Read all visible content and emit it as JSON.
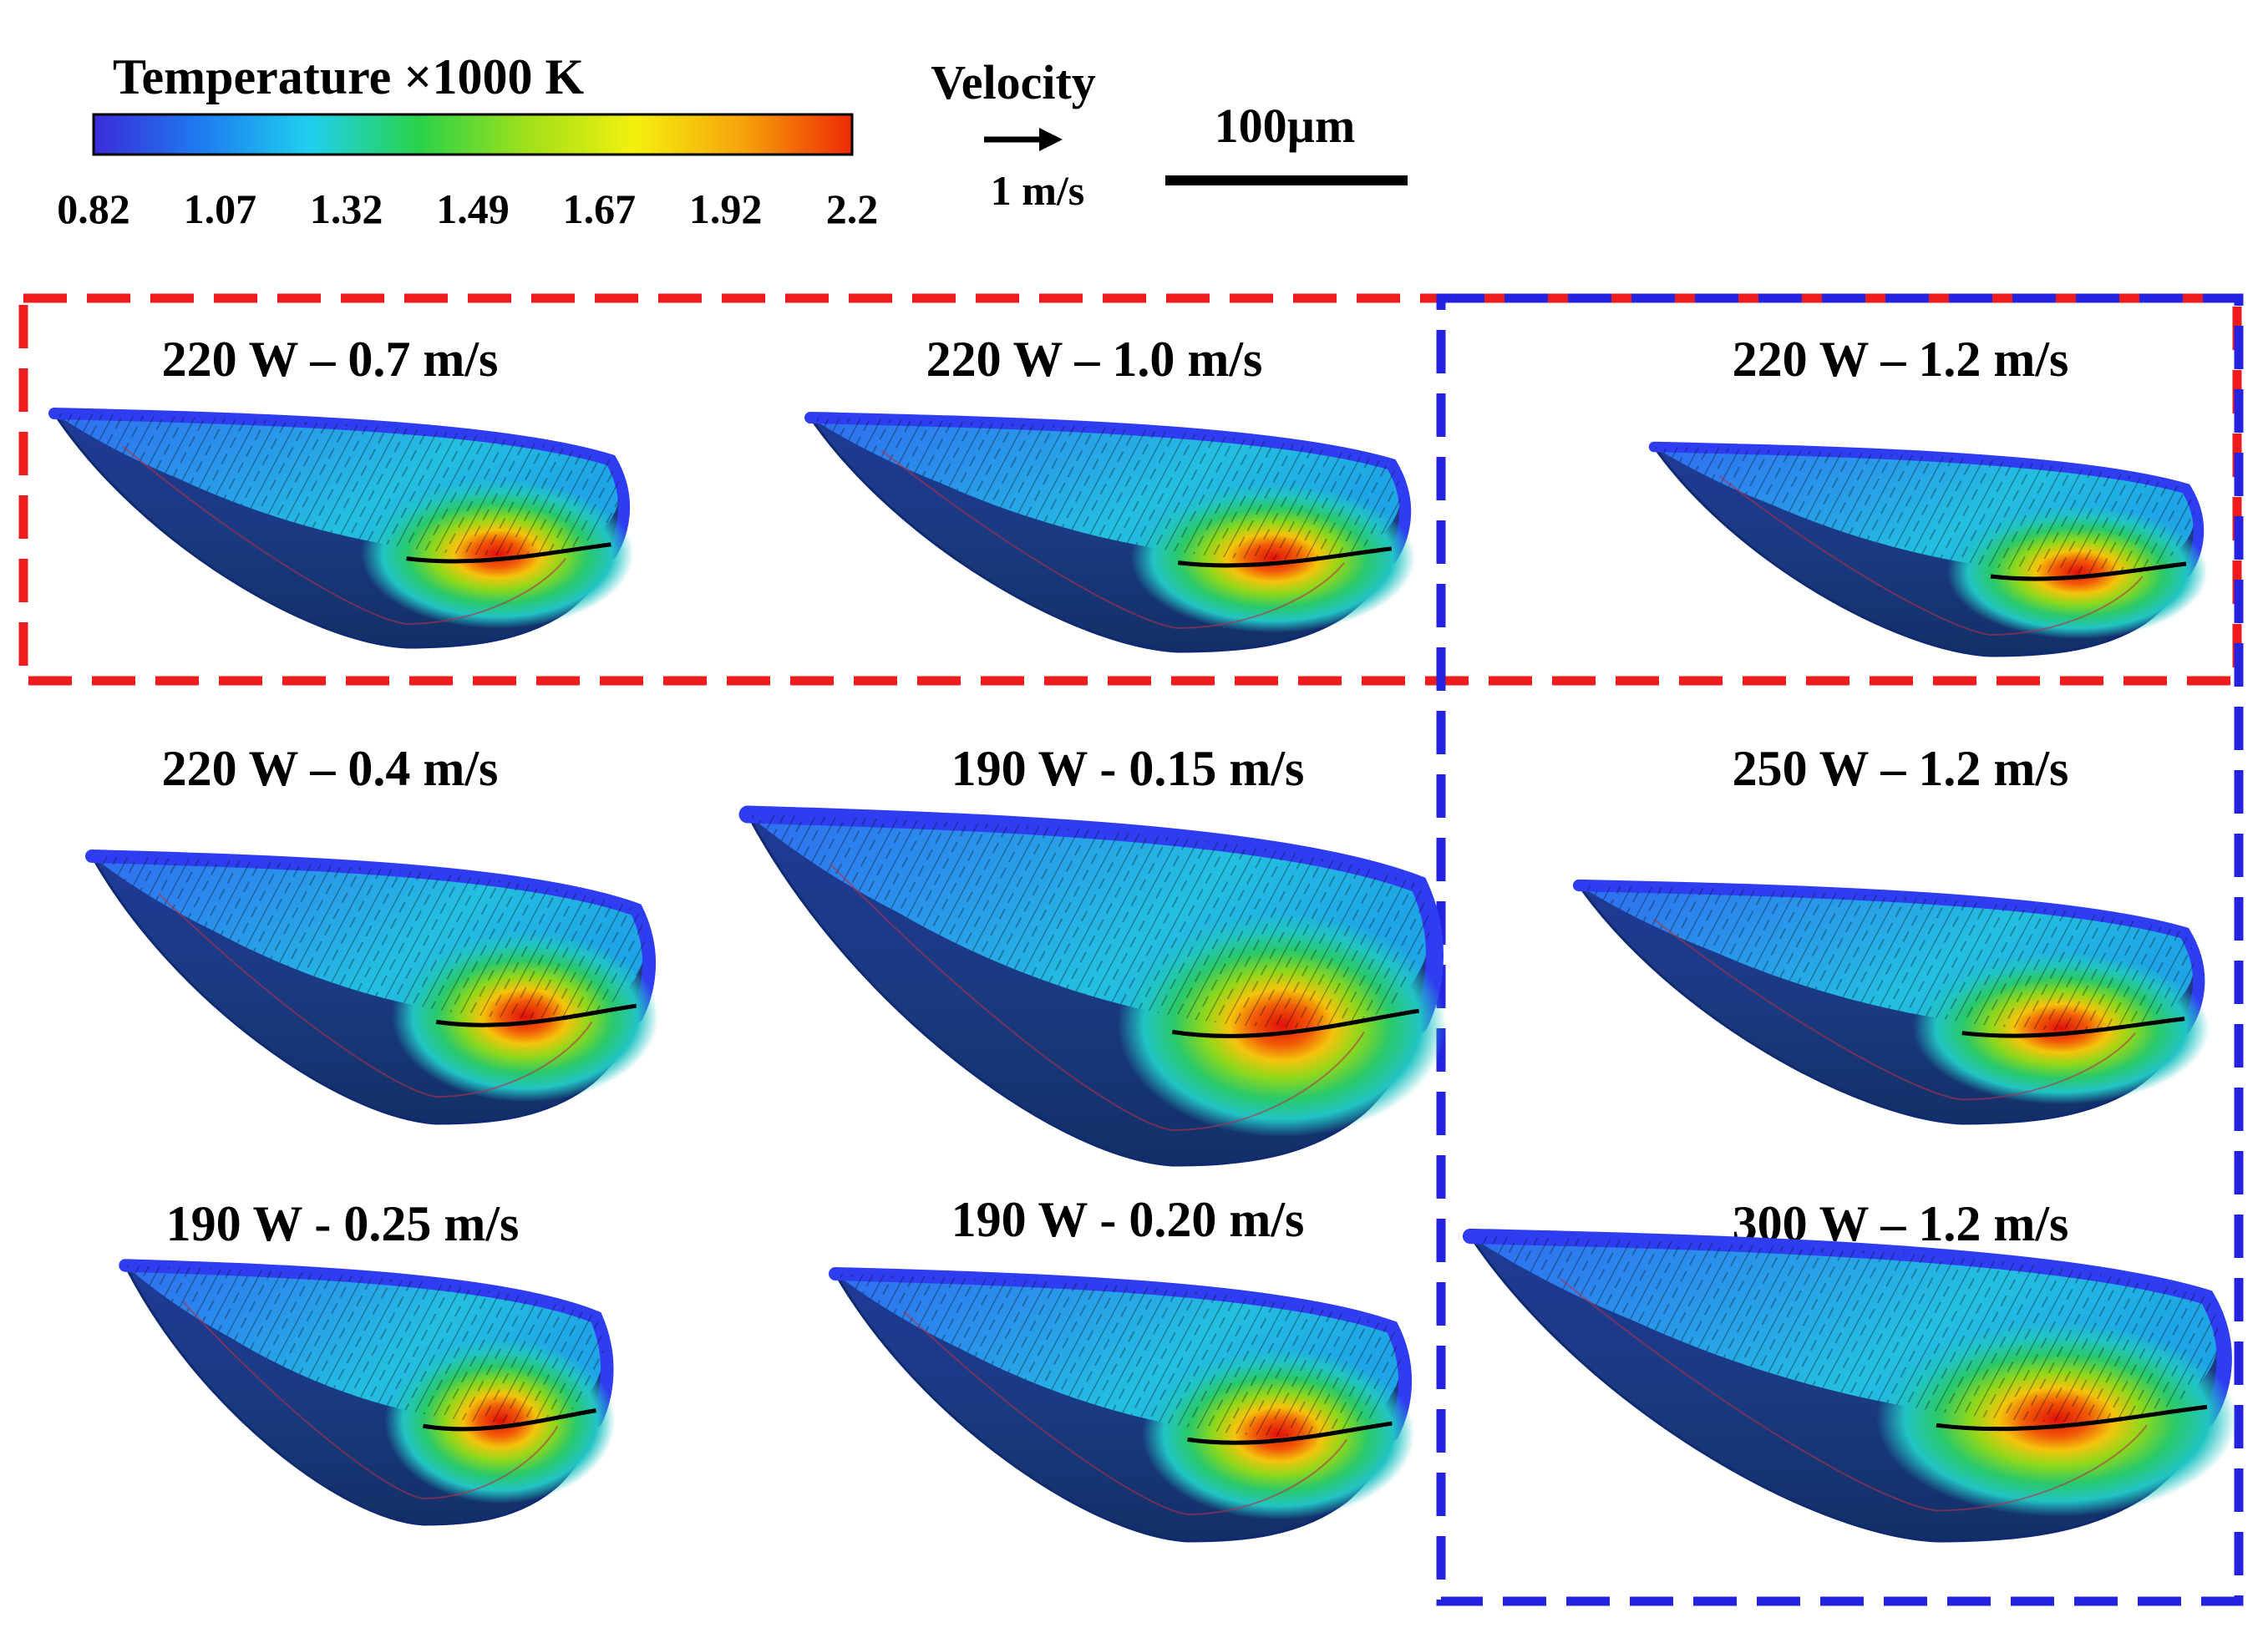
{
  "figure": {
    "type": "melt-pool simulation comparison",
    "colorbar": {
      "title": "Temperature ×1000 K",
      "ticks": [
        "0.82",
        "1.07",
        "1.32",
        "1.49",
        "1.67",
        "1.92",
        "2.2"
      ],
      "stops": [
        "#3a2bd8",
        "#1e7cf0",
        "#1fd0ee",
        "#2ad24a",
        "#9fe01a",
        "#f4f00e",
        "#f7a20b",
        "#ee2a06"
      ]
    },
    "velocity_legend": {
      "label": "Velocity",
      "reference": "1 m/s"
    },
    "scale_bar": {
      "label": "100µm"
    },
    "groups": [
      {
        "name": "constant-power-group",
        "color": "#ee1c1c",
        "style": "dashed"
      },
      {
        "name": "constant-speed-group",
        "color": "#2424e0",
        "style": "dashed"
      }
    ],
    "pools": [
      {
        "label": "220 W – 0.7 m/s"
      },
      {
        "label": "220 W – 1.0 m/s"
      },
      {
        "label": "220 W – 1.2 m/s"
      },
      {
        "label": "220 W – 0.4 m/s"
      },
      {
        "label": "190 W - 0.15 m/s"
      },
      {
        "label": "250 W – 1.2 m/s"
      },
      {
        "label": "190 W - 0.25 m/s"
      },
      {
        "label": "190 W - 0.20 m/s"
      },
      {
        "label": "300 W – 1.2 m/s"
      }
    ]
  }
}
